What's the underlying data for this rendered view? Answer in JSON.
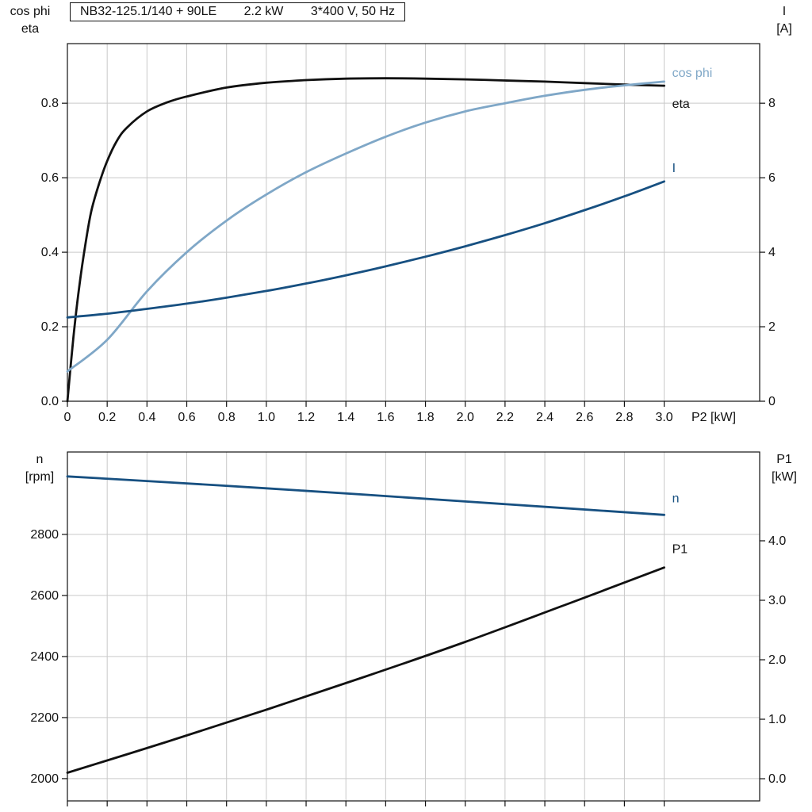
{
  "colors": {
    "frame": "#111111",
    "grid": "#c9c9c9",
    "text": "#111111",
    "black": "#111111",
    "dark_blue": "#175081",
    "light_blue": "#7fa7c7"
  },
  "chart_data": [
    {
      "type": "line",
      "title_parts": [
        "NB32-125.1/140 + 90LE",
        "2.2 kW",
        "3*400 V, 50 Hz"
      ],
      "x_axis": {
        "label": "P2 [kW]",
        "min": 0,
        "max": 3.48,
        "tick_values": [
          0,
          0.2,
          0.4,
          0.6,
          0.8,
          1,
          1.2,
          1.4,
          1.6,
          1.8,
          2,
          2.2,
          2.4,
          2.6,
          2.8,
          3
        ],
        "tick_labels": [
          "0",
          "0.2",
          "0.4",
          "0.6",
          "0.8",
          "1.0",
          "1.2",
          "1.4",
          "1.6",
          "1.8",
          "2.0",
          "2.2",
          "2.4",
          "2.6",
          "2.8",
          "3.0"
        ]
      },
      "left_axis": {
        "label_lines": [
          "cos phi",
          "eta"
        ],
        "min": 0,
        "max": 0.96,
        "tick_values": [
          0,
          0.2,
          0.4,
          0.6,
          0.8
        ],
        "tick_labels": [
          "0.0",
          "0.2",
          "0.4",
          "0.6",
          "0.8"
        ]
      },
      "right_axis": {
        "label_lines": [
          "I",
          "[A]"
        ],
        "min": 0,
        "max": 9.6,
        "tick_values": [
          0,
          2,
          4,
          6,
          8
        ],
        "tick_labels": [
          "0",
          "2",
          "4",
          "6",
          "8"
        ]
      },
      "series": [
        {
          "name": "eta",
          "axis": "left",
          "color": "black",
          "x": [
            0,
            0.03,
            0.06,
            0.09,
            0.12,
            0.16,
            0.2,
            0.25,
            0.3,
            0.4,
            0.5,
            0.6,
            0.8,
            1,
            1.2,
            1.4,
            1.6,
            1.8,
            2,
            2.2,
            2.4,
            2.6,
            2.8,
            3
          ],
          "y": [
            0,
            0.17,
            0.31,
            0.42,
            0.51,
            0.585,
            0.645,
            0.7,
            0.735,
            0.778,
            0.802,
            0.818,
            0.842,
            0.855,
            0.862,
            0.866,
            0.867,
            0.866,
            0.864,
            0.861,
            0.858,
            0.854,
            0.85,
            0.847
          ]
        },
        {
          "name": "cos phi",
          "axis": "left",
          "color": "light_blue",
          "x": [
            0,
            0.2,
            0.4,
            0.6,
            0.8,
            1,
            1.2,
            1.4,
            1.6,
            1.8,
            2,
            2.2,
            2.4,
            2.6,
            2.8,
            3
          ],
          "y": [
            0.08,
            0.165,
            0.295,
            0.4,
            0.485,
            0.555,
            0.615,
            0.665,
            0.71,
            0.748,
            0.778,
            0.8,
            0.82,
            0.836,
            0.848,
            0.858
          ]
        },
        {
          "name": "I",
          "axis": "right",
          "color": "dark_blue",
          "x": [
            0,
            0.2,
            0.4,
            0.6,
            0.8,
            1,
            1.2,
            1.4,
            1.6,
            1.8,
            2,
            2.2,
            2.4,
            2.6,
            2.8,
            3
          ],
          "y": [
            2.25,
            2.35,
            2.48,
            2.62,
            2.78,
            2.96,
            3.16,
            3.38,
            3.62,
            3.88,
            4.16,
            4.46,
            4.78,
            5.13,
            5.5,
            5.9
          ]
        }
      ]
    },
    {
      "type": "line",
      "x_axis": {
        "label": "",
        "min": 0,
        "max": 3.48,
        "tick_values": [
          0,
          0.2,
          0.4,
          0.6,
          0.8,
          1,
          1.2,
          1.4,
          1.6,
          1.8,
          2,
          2.2,
          2.4,
          2.6,
          2.8,
          3
        ],
        "tick_labels": []
      },
      "left_axis": {
        "label_lines": [
          "n",
          "[rpm]"
        ],
        "min": 1927,
        "max": 3070,
        "tick_values": [
          2000,
          2200,
          2400,
          2600,
          2800
        ],
        "tick_labels": [
          "2000",
          "2200",
          "2400",
          "2600",
          "2800"
        ]
      },
      "right_axis": {
        "label_lines": [
          "P1",
          "[kW]"
        ],
        "min": -0.373,
        "max": 5.493,
        "tick_values": [
          0,
          1,
          2,
          3,
          4
        ],
        "tick_labels": [
          "0.0",
          "1.0",
          "2.0",
          "3.0",
          "4.0"
        ]
      },
      "series": [
        {
          "name": "n",
          "axis": "left",
          "color": "dark_blue",
          "x": [
            0,
            0.5,
            1,
            1.5,
            2,
            2.5,
            3
          ],
          "y": [
            2990,
            2971,
            2951,
            2930,
            2908,
            2886,
            2864
          ]
        },
        {
          "name": "P1",
          "axis": "right",
          "color": "black",
          "x": [
            0,
            0.5,
            1,
            1.5,
            2,
            2.5,
            3
          ],
          "y": [
            0.1,
            0.62,
            1.16,
            1.72,
            2.3,
            2.92,
            3.55
          ]
        }
      ]
    }
  ]
}
